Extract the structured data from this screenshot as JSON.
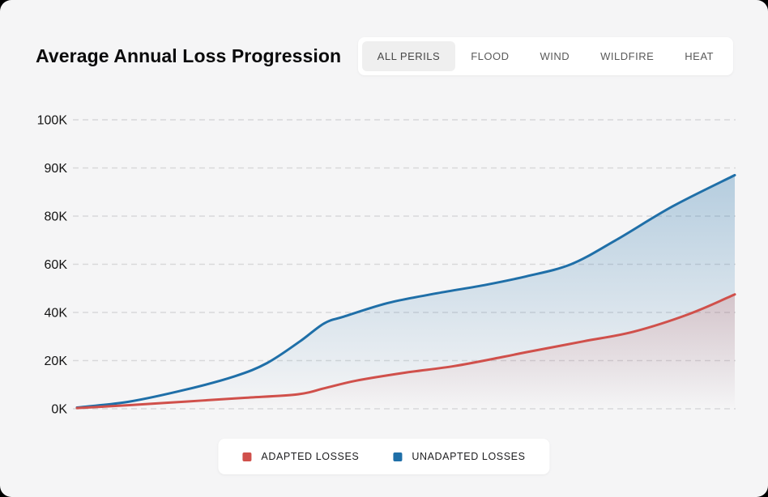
{
  "page": {
    "title": "Average Annual Loss Progression"
  },
  "tabs": {
    "items": [
      {
        "label": "ALL PERILS",
        "active": true
      },
      {
        "label": "FLOOD",
        "active": false
      },
      {
        "label": "WIND",
        "active": false
      },
      {
        "label": "WILDFIRE",
        "active": false
      },
      {
        "label": "HEAT",
        "active": false
      }
    ]
  },
  "legend": {
    "items": [
      {
        "label": "ADAPTED LOSSES",
        "color": "#D0504B"
      },
      {
        "label": "UNADAPTED LOSSES",
        "color": "#1F6FA8"
      }
    ]
  },
  "chart_data": {
    "type": "area",
    "title": "Average Annual Loss Progression",
    "unit": "thousands",
    "grid": "horizontal-dashed",
    "legend_position": "bottom-center",
    "x_axis": {
      "labels_visible": false
    },
    "y_axis": {
      "tick_labels": [
        "0K",
        "20K",
        "40K",
        "60K",
        "80K",
        "90K",
        "100K"
      ],
      "tick_values": [
        0,
        20,
        40,
        60,
        80,
        90,
        100
      ],
      "evenly_spaced_ticks": true
    },
    "series": [
      {
        "name": "UNADAPTED LOSSES",
        "color": "#1F6FA8",
        "fill_opacity": 0.3,
        "points": [
          [
            0,
            0.5
          ],
          [
            8,
            3
          ],
          [
            16.6,
            8
          ],
          [
            24,
            13.5
          ],
          [
            28.9,
            19
          ],
          [
            33.9,
            28
          ],
          [
            37.6,
            35.5
          ],
          [
            40.6,
            38.3
          ],
          [
            47.4,
            44
          ],
          [
            54.8,
            48
          ],
          [
            62.2,
            51.5
          ],
          [
            68.3,
            55
          ],
          [
            75.1,
            60
          ],
          [
            81.9,
            70
          ],
          [
            90.5,
            82
          ],
          [
            100,
            88.5
          ]
        ]
      },
      {
        "name": "ADAPTED LOSSES",
        "color": "#D0504B",
        "fill_opacity": 0.2,
        "points": [
          [
            0,
            0.3
          ],
          [
            8,
            1.5
          ],
          [
            16.6,
            3
          ],
          [
            25.2,
            4.5
          ],
          [
            33.6,
            6
          ],
          [
            37.6,
            8.5
          ],
          [
            42.5,
            11.7
          ],
          [
            49.9,
            15
          ],
          [
            57.3,
            17.7
          ],
          [
            64.7,
            21.5
          ],
          [
            68.3,
            23.5
          ],
          [
            77,
            28
          ],
          [
            84.6,
            32
          ],
          [
            93,
            39.3
          ],
          [
            100,
            47.5
          ]
        ]
      }
    ]
  }
}
